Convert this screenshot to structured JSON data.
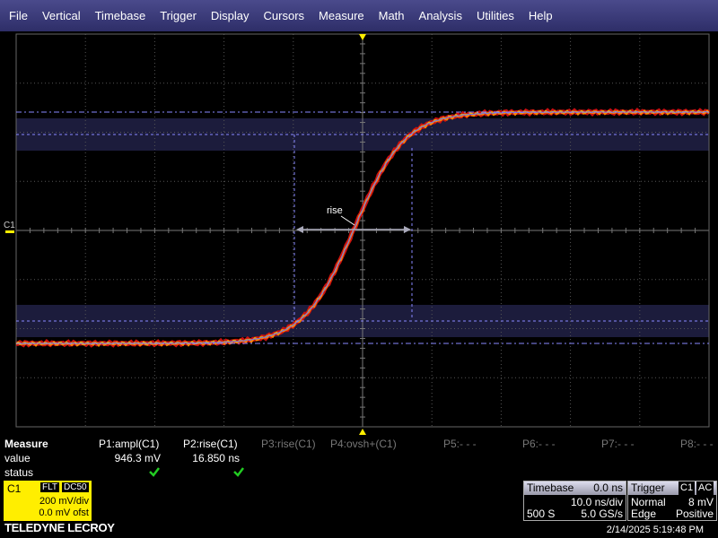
{
  "menu": [
    "File",
    "Vertical",
    "Timebase",
    "Trigger",
    "Display",
    "Cursors",
    "Measure",
    "Math",
    "Analysis",
    "Utilities",
    "Help"
  ],
  "graticule": {
    "channel_label": "C1",
    "annotation": "rise"
  },
  "measure": {
    "title": "Measure",
    "row_labels": [
      "value",
      "status"
    ],
    "columns": [
      {
        "name": "P1:ampl(C1)",
        "value": "946.3 mV"
      },
      {
        "name": "P2:rise(C1)",
        "value": "16.850 ns"
      },
      {
        "name": "P3:rise(C1)"
      },
      {
        "name": "P4:ovsh+(C1)"
      },
      {
        "name": "P5:- - -"
      },
      {
        "name": "P6:- - -"
      },
      {
        "name": "P7:- - -"
      },
      {
        "name": "P8:- - -"
      }
    ]
  },
  "channel": {
    "name": "C1",
    "coupling": [
      "FLT",
      "DC50"
    ],
    "scale": "200 mV/div",
    "offset": "0.0 mV ofst"
  },
  "timebase": {
    "title": "Timebase",
    "delay": "0.0 ns",
    "scale": "10.0 ns/div",
    "samples": "500 S",
    "rate": "5.0 GS/s"
  },
  "trigger": {
    "title": "Trigger",
    "source": "C1",
    "coupling": "AC",
    "mode": "Normal",
    "level": "8 mV",
    "type": "Edge",
    "slope": "Positive"
  },
  "brand": "TELEDYNE LECROY",
  "timestamp": "2/14/2025 5:19:48 PM"
}
